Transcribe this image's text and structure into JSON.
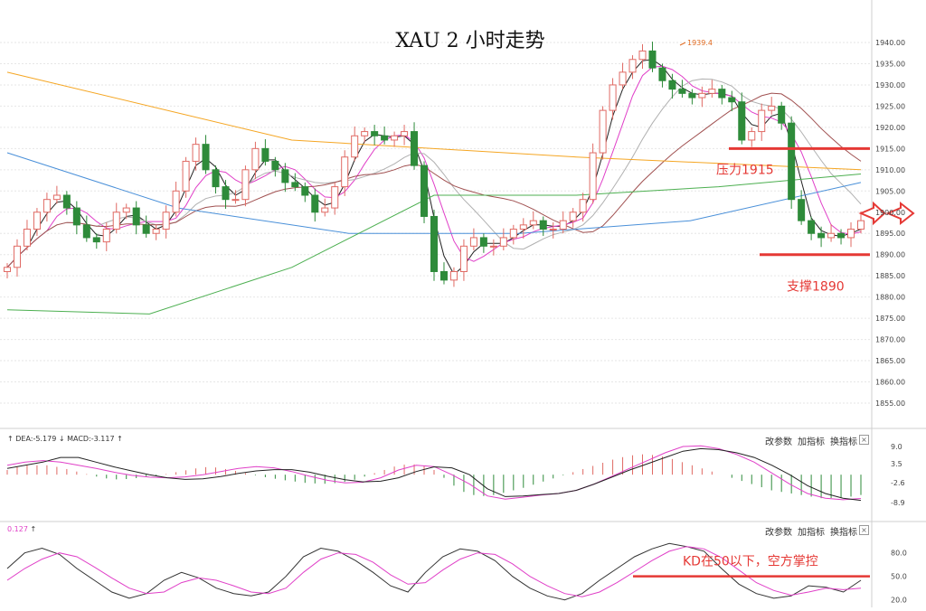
{
  "title": "XAU 2 小时走势",
  "high_label": "1939.4",
  "buttons": {
    "change_params": "改参数",
    "add_indicator": "加指标",
    "switch_indicator": "换指标",
    "close": "×"
  },
  "macd_header": {
    "dea": "DEA:-5.179",
    "macd": "MACD:-3.117"
  },
  "kd_header": {
    "value": "0.127"
  },
  "annotations": {
    "resistance": "压力1915",
    "support": "支撑1890",
    "kd_note": "KD在50以下，空方掌控"
  },
  "colors": {
    "bull": "#e06a64",
    "bear": "#2e8b3a",
    "annotation_red": "#e53935",
    "ma_black": "#222222",
    "ma_magenta": "#e040c8",
    "ma_gray": "#b0b0b0",
    "ma_brown": "#a05050",
    "ma_green": "#4caf50",
    "ma_blue": "#4a90d9",
    "ma_orange": "#f5a623"
  },
  "chart_data": [
    {
      "type": "candlestick",
      "title": "XAU 2 小时走势",
      "ylim": [
        1850,
        1942
      ],
      "y_ticks": [
        1940,
        1935,
        1930,
        1925,
        1920,
        1915,
        1910,
        1905,
        1900,
        1895,
        1890,
        1885,
        1880,
        1875,
        1870,
        1865,
        1860,
        1855
      ],
      "y_tick_labels": [
        "1940.00",
        "1935.00",
        "1930.00",
        "1925.00",
        "1920.00",
        "1915.00",
        "1910.00",
        "1905.00",
        "1900.00",
        "1895.00",
        "1890.00",
        "1885.00",
        "1880.00",
        "1875.00",
        "1870.00",
        "1865.00",
        "1860.00",
        "1855.00"
      ],
      "close_path": [
        1887,
        1892,
        1896,
        1900,
        1903,
        1904,
        1901,
        1897,
        1894,
        1893,
        1896,
        1900,
        1901,
        1897,
        1895,
        1896,
        1900,
        1905,
        1912,
        1916,
        1910,
        1906,
        1903,
        1903,
        1910,
        1915,
        1912,
        1910,
        1907,
        1906,
        1904,
        1900,
        1901,
        1906,
        1913,
        1918,
        1919,
        1918,
        1917,
        1918,
        1919,
        1911,
        1899,
        1886,
        1884,
        1886,
        1892,
        1894,
        1892,
        1892,
        1894,
        1896,
        1897,
        1898,
        1896,
        1896,
        1898,
        1900,
        1903,
        1914,
        1924,
        1930,
        1933,
        1936,
        1938,
        1934,
        1931,
        1929,
        1928,
        1927,
        1928,
        1929,
        1927,
        1926,
        1917,
        1919,
        1924,
        1925,
        1921,
        1903,
        1898,
        1895,
        1894,
        1895,
        1894,
        1896,
        1898
      ],
      "moving_averages": [
        {
          "name": "MA-orange",
          "values": [
            1933,
            1917,
            1913,
            1910
          ]
        },
        {
          "name": "MA-blue",
          "values": [
            1914,
            1901,
            1895,
            1895,
            1898,
            1907
          ]
        },
        {
          "name": "MA-green",
          "values": [
            1877,
            1876,
            1887,
            1904,
            1904,
            1906,
            1909
          ]
        }
      ],
      "annotations": [
        {
          "text": "压力1915",
          "y": 1915
        },
        {
          "text": "支撑1890",
          "y": 1890
        },
        {
          "text": "1939.4",
          "y": 1939.4
        }
      ]
    },
    {
      "type": "bar",
      "title": "MACD",
      "y_tick_labels": [
        "9.0",
        "3.5",
        "-2.6",
        "-8.9"
      ],
      "y_ticks": [
        9.0,
        3.5,
        -2.6,
        -8.9
      ],
      "ylim": [
        -10,
        11
      ],
      "histogram": [
        1.5,
        2.5,
        3,
        3,
        3,
        2.5,
        1.8,
        1,
        0.2,
        -0.6,
        -1.2,
        -1.5,
        -1.4,
        -1.1,
        -0.7,
        -0.3,
        0.2,
        0.8,
        1.4,
        2,
        2.4,
        2.3,
        1.8,
        1.2,
        0.5,
        -0.2,
        -0.8,
        -1.3,
        -1.8,
        -2.2,
        -2.6,
        -2.8,
        -2.9,
        -2.7,
        -2.3,
        -1.6,
        -0.6,
        0.5,
        1.5,
        2.6,
        3.2,
        3.3,
        2.8,
        1.5,
        -1,
        -3.5,
        -5.5,
        -6.5,
        -6.8,
        -6.5,
        -5.8,
        -5,
        -4.2,
        -3.2,
        -2.2,
        -1.2,
        -0.2,
        0.8,
        1.8,
        2.8,
        3.8,
        4.8,
        5.6,
        6.2,
        6.5,
        6.3,
        5.8,
        5,
        4,
        3,
        2,
        1,
        0,
        -1,
        -2,
        -3,
        -4,
        -5,
        -5.5,
        -6,
        -6.5,
        -7,
        -7.5,
        -7.5,
        -7.3,
        -7,
        -6.5
      ],
      "series": [
        {
          "name": "DEA",
          "values": [
            3,
            4,
            4.5,
            4,
            3,
            2,
            0.8,
            -0.2,
            -0.8,
            -1,
            -0.7,
            0,
            1,
            2,
            2.6,
            2.2,
            1,
            -0.5,
            -1.8,
            -2.6,
            -2.4,
            -1,
            1.5,
            3,
            2.6,
            0,
            -3,
            -6.8,
            -7.8,
            -7.2,
            -6.5,
            -6,
            -5,
            -3,
            -0.5,
            2,
            4.5,
            7,
            9,
            9.2,
            8.3,
            6.5,
            4,
            0.5,
            -3,
            -6,
            -7.5,
            -8,
            -7.6
          ]
        },
        {
          "name": "MACD",
          "values": [
            2,
            3,
            4,
            5.5,
            5.5,
            4,
            2.5,
            1.2,
            0,
            -1,
            -1.5,
            -1.3,
            -0.6,
            0.4,
            1.2,
            1.6,
            1.6,
            0.8,
            -0.5,
            -1.6,
            -2.3,
            -2.1,
            -1,
            1,
            2.5,
            2.2,
            0,
            -4.5,
            -7,
            -6.8,
            -6.4,
            -6,
            -5,
            -3,
            -0.8,
            1.5,
            3.5,
            5.5,
            7.5,
            8.3,
            8,
            7,
            5.5,
            3,
            0,
            -3.5,
            -6,
            -7.5,
            -8.2
          ]
        }
      ]
    },
    {
      "type": "line",
      "title": "KD",
      "y_tick_labels": [
        "80.0",
        "50.0",
        "20.0"
      ],
      "y_ticks": [
        80,
        50,
        20
      ],
      "ylim": [
        15,
        105
      ],
      "reference_line": 50,
      "series": [
        {
          "name": "K",
          "values": [
            60,
            80,
            86,
            78,
            60,
            45,
            30,
            22,
            28,
            45,
            55,
            48,
            35,
            28,
            25,
            30,
            50,
            75,
            86,
            82,
            70,
            55,
            38,
            30,
            55,
            75,
            85,
            82,
            70,
            50,
            35,
            25,
            20,
            28,
            45,
            60,
            75,
            85,
            92,
            88,
            82,
            60,
            40,
            28,
            22,
            25,
            38,
            36,
            30,
            45
          ]
        },
        {
          "name": "D",
          "values": [
            45,
            60,
            72,
            80,
            75,
            62,
            48,
            35,
            28,
            30,
            42,
            48,
            45,
            38,
            30,
            28,
            35,
            55,
            72,
            80,
            78,
            68,
            52,
            40,
            42,
            58,
            72,
            80,
            78,
            66,
            50,
            38,
            28,
            24,
            30,
            42,
            56,
            70,
            82,
            88,
            85,
            74,
            58,
            42,
            32,
            26,
            30,
            35,
            33,
            35
          ]
        }
      ]
    }
  ]
}
